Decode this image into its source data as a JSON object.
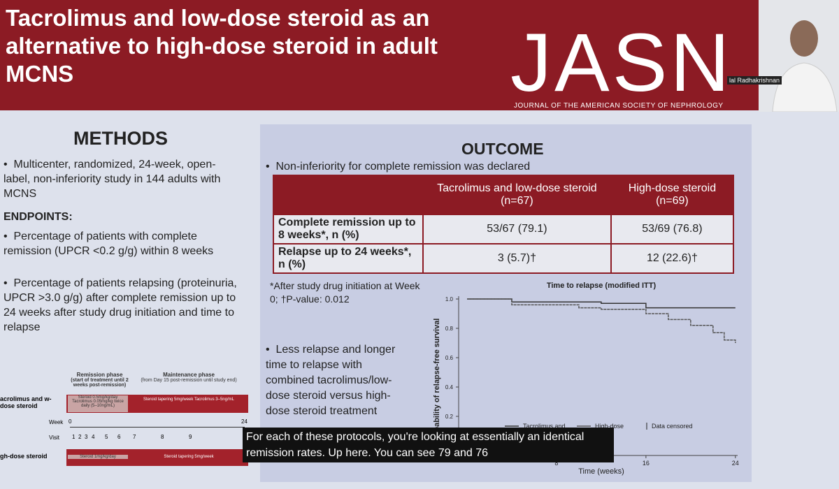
{
  "header": {
    "title": "Tacrolimus and low-dose steroid as an alternative to high-dose steroid in adult MCNS",
    "logo": "JASN",
    "journal": "JOURNAL OF THE AMERICAN SOCIETY OF NEPHROLOGY"
  },
  "speaker": {
    "name": "lal Radhakrishnan"
  },
  "methods": {
    "heading": "METHODS",
    "intro": "Multicenter, randomized, 24-week, open-label, non-inferiority study in 144 adults with MCNS",
    "endpoints_heading": "ENDPOINTS:",
    "endpoints": [
      "Percentage of patients with complete remission (UPCR <0.2 g/g) within 8 weeks",
      "Percentage of patients relapsing (proteinuria, UPCR >3.0 g/g) after complete remission up to 24 weeks after study drug initiation and time to relapse"
    ]
  },
  "design": {
    "remission_phase": "Remission phase",
    "remission_note": "(start of treatment until 2 weeks post-remission)",
    "maintenance_phase": "Maintenance phase",
    "maintenance_note": "(from Day 15 post-remission until study end)",
    "arm1": "acrolimus and w-dose steroid",
    "arm1_remission": "Steroid 0.5mg/kg/day Tacrolimus 0.05mg/kg twice daily (5–10ng/mL)",
    "arm1_maintenance": "Steroid tapering 5mg/week Tacrolimus 3–5ng/mL",
    "week_label": "Week",
    "week_start": "0",
    "week_end": "24",
    "visit_label": "Visit",
    "visits": [
      "1",
      "2",
      "3",
      "4",
      "5",
      "6",
      "7",
      "8",
      "9"
    ],
    "arm2": "gh-dose steroid",
    "arm2_remission": "Steroid 1mg/kg/day",
    "arm2_maintenance": "Steroid tapering 5mg/week"
  },
  "outcome": {
    "heading": "OUTCOME",
    "bullet": "Non-inferiority for complete remission was declared",
    "table": {
      "header": [
        "Tacrolimus and low-dose steroid (n=67)",
        "High-dose steroid  (n=69)"
      ],
      "rows": [
        {
          "label": "Complete remission up to 8 weeks*, n (%)",
          "cells": [
            "53/67 (79.1)",
            "53/69 (76.8)"
          ]
        },
        {
          "label": "Relapse up to 24 weeks*, n (%)",
          "cells": [
            "3 (5.7)†",
            "12 (22.6)†"
          ]
        }
      ]
    },
    "footnote": "*After study drug initiation at Week 0; †P-value: 0.012",
    "bullet2": "Less relapse and longer time to relapse with combined tacrolimus/low-dose steroid versus high-dose steroid treatment"
  },
  "chart_data": {
    "type": "line",
    "step": true,
    "title": "Time to relapse (modified ITT)",
    "y_label": "obability of relapse-free survival",
    "x_label": "Time (weeks)",
    "x": [
      0,
      2,
      4,
      6,
      8,
      10,
      12,
      14,
      16,
      18,
      20,
      22,
      23,
      24
    ],
    "series": [
      {
        "name": "Tacrolimus and",
        "color": "#333333",
        "values": [
          1,
          1,
          0.98,
          0.98,
          0.98,
          0.98,
          0.97,
          0.97,
          0.94,
          0.94,
          0.94,
          0.94,
          0.94,
          0.94
        ]
      },
      {
        "name": "High-dose",
        "color": "#555555",
        "values": [
          1,
          1,
          0.96,
          0.96,
          0.96,
          0.94,
          0.93,
          0.93,
          0.9,
          0.86,
          0.82,
          0.77,
          0.72,
          0.7
        ]
      }
    ],
    "censored_label": "Data censored",
    "xlim": [
      0,
      24.2
    ],
    "ylim": [
      0,
      1
    ],
    "xticks": [
      8,
      16,
      24
    ],
    "yticks": [
      0.2,
      0.4,
      0.6,
      0.8,
      {
        "value": 1,
        "label": "1.0"
      }
    ]
  },
  "caption": {
    "lines": [
      "For each of these protocols, you're looking at essentially an identical",
      "remission rates. Up here. You can see 79 and 76"
    ]
  }
}
